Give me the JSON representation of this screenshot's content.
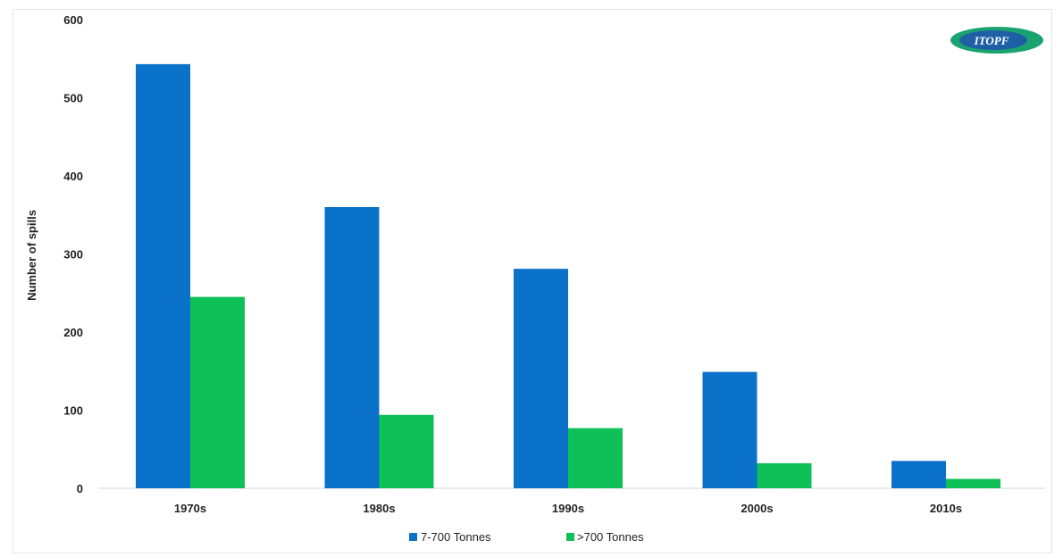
{
  "logo": {
    "text": "ITOPF",
    "color_outer": "#1aa36f",
    "color_inner": "#1f5fa6"
  },
  "chart_data": {
    "type": "bar",
    "categories": [
      "1970s",
      "1980s",
      "1990s",
      "2000s",
      "2010s"
    ],
    "series": [
      {
        "name": "7-700 Tonnes",
        "values": [
          543,
          360,
          281,
          149,
          35
        ],
        "color": "#0a72c9"
      },
      {
        "name": ">700 Tonnes",
        "values": [
          245,
          94,
          77,
          32,
          12
        ],
        "color": "#0fbf57"
      }
    ],
    "title": "",
    "xlabel": "",
    "ylabel": "Number of spills",
    "ylim": [
      0,
      600
    ],
    "yticks": [
      0,
      100,
      200,
      300,
      400,
      500,
      600
    ],
    "grid": false,
    "legend_position": "bottom"
  }
}
